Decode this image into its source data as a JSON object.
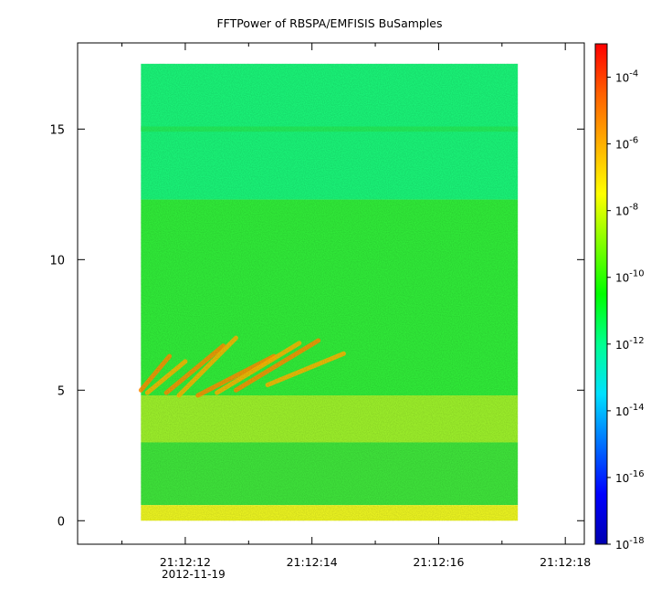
{
  "chart_data": {
    "type": "heatmap",
    "title": "FFTPower of RBSPA/EMFISIS  BuSamples",
    "xlabel": "",
    "ylabel": "",
    "x_tick_labels": [
      "21:12:12",
      "21:12:14",
      "21:12:16",
      "21:12:18"
    ],
    "x_tick_values": [
      12,
      14,
      16,
      18
    ],
    "x_date_label": "2012-11-19",
    "xlim": [
      10.3,
      18.3
    ],
    "ylim": [
      -0.9,
      18.3
    ],
    "y_ticks": [
      0,
      5,
      10,
      15
    ],
    "data_extent": {
      "x": [
        11.3,
        17.25
      ],
      "y": [
        0,
        17.5
      ]
    },
    "colorbar": {
      "scale": "log",
      "range": [
        1e-18,
        0.001
      ],
      "tick_exponents": [
        -18,
        -16,
        -14,
        -12,
        -10,
        -8,
        -6,
        -4
      ],
      "tick_base": "10",
      "colors": [
        "#0000b0",
        "#0000ff",
        "#0070ff",
        "#00e0ff",
        "#00ff90",
        "#00ff00",
        "#80ff00",
        "#ffff00",
        "#ffb000",
        "#ff6000",
        "#ff0000"
      ]
    },
    "bands": [
      {
        "name": "background-high",
        "y": [
          12.3,
          17.5
        ],
        "log_power": -11.3,
        "color": "#1af076"
      },
      {
        "name": "line-15",
        "y": [
          14.9,
          15.1
        ],
        "log_power": -10.6,
        "color": "#22e85a"
      },
      {
        "name": "background-mid",
        "y": [
          4.8,
          12.3
        ],
        "log_power": -10.2,
        "color": "#30e838"
      },
      {
        "name": "enhanced-band",
        "y": [
          3.0,
          4.8
        ],
        "log_power": -9.0,
        "color": "#9aec2a"
      },
      {
        "name": "background-low",
        "y": [
          0.6,
          3.0
        ],
        "log_power": -10.0,
        "color": "#3ee03a"
      },
      {
        "name": "low-freq-band",
        "y": [
          0.0,
          0.6
        ],
        "log_power": -8.5,
        "color": "#e8f020"
      }
    ],
    "chorus_elements": [
      {
        "x0": 11.3,
        "y0": 5.0,
        "x1": 11.75,
        "y1": 6.3
      },
      {
        "x0": 11.4,
        "y0": 4.9,
        "x1": 12.0,
        "y1": 6.1
      },
      {
        "x0": 11.7,
        "y0": 4.9,
        "x1": 12.6,
        "y1": 6.7
      },
      {
        "x0": 11.9,
        "y0": 4.8,
        "x1": 12.8,
        "y1": 7.0
      },
      {
        "x0": 12.2,
        "y0": 4.8,
        "x1": 13.4,
        "y1": 6.3
      },
      {
        "x0": 12.5,
        "y0": 4.9,
        "x1": 13.8,
        "y1": 6.8
      },
      {
        "x0": 12.8,
        "y0": 5.0,
        "x1": 14.1,
        "y1": 6.9
      },
      {
        "x0": 13.3,
        "y0": 5.2,
        "x1": 14.5,
        "y1": 6.4
      }
    ]
  }
}
